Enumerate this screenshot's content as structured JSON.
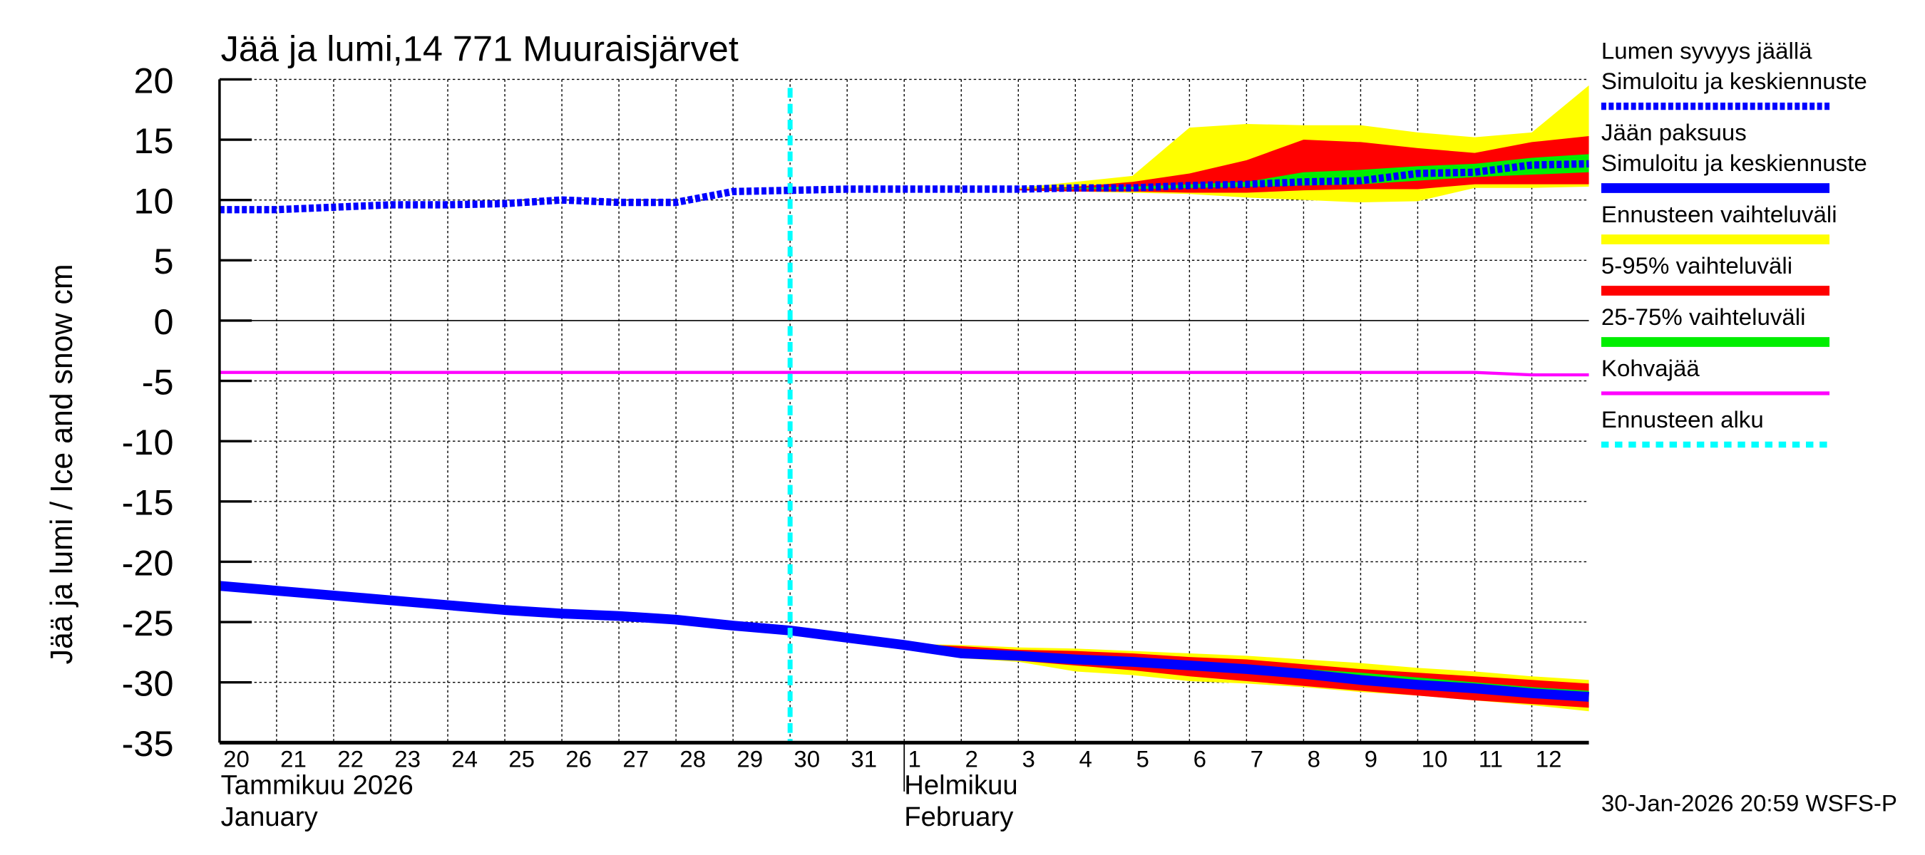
{
  "chart_data": {
    "type": "line",
    "title": "Jää ja lumi,14 771 Muuraisjärvet",
    "ylabel": "Jää ja lumi / Ice and snow    cm",
    "ylim": [
      -35,
      20
    ],
    "yticks": [
      20,
      15,
      10,
      5,
      0,
      -5,
      -10,
      -15,
      -20,
      -25,
      -30,
      -35
    ],
    "xlim": [
      "2026-01-20",
      "2026-02-13"
    ],
    "grid": true,
    "legend_placement": "right",
    "x_tick_labels": [
      "20",
      "21",
      "22",
      "23",
      "24",
      "25",
      "26",
      "27",
      "28",
      "29",
      "30",
      "31",
      "1",
      "2",
      "3",
      "4",
      "5",
      "6",
      "7",
      "8",
      "9",
      "10",
      "11",
      "12"
    ],
    "month_labels": [
      {
        "fi": "Tammikuu  2026",
        "en": "January",
        "start": "2026-01-20"
      },
      {
        "fi": "Helmikuu",
        "en": "February",
        "start": "2026-02-01"
      }
    ],
    "dates": [
      "2026-01-20",
      "2026-01-21",
      "2026-01-22",
      "2026-01-23",
      "2026-01-24",
      "2026-01-25",
      "2026-01-26",
      "2026-01-27",
      "2026-01-28",
      "2026-01-29",
      "2026-01-30",
      "2026-01-31",
      "2026-02-01",
      "2026-02-02",
      "2026-02-03",
      "2026-02-04",
      "2026-02-05",
      "2026-02-06",
      "2026-02-07",
      "2026-02-08",
      "2026-02-09",
      "2026-02-10",
      "2026-02-11",
      "2026-02-12",
      "2026-02-13"
    ],
    "forecast_start": "2026-01-30",
    "snow": {
      "name": "Lumen syvyys jäällä Simuloitu ja keskiennuste",
      "color": "#0000ff",
      "values": [
        9.2,
        9.2,
        9.4,
        9.6,
        9.6,
        9.7,
        10.0,
        9.8,
        9.8,
        10.7,
        10.8,
        10.9,
        10.9,
        10.9,
        10.9,
        11.0,
        11.0,
        11.2,
        11.3,
        11.5,
        11.6,
        12.2,
        12.3,
        12.9,
        13.0
      ],
      "band_start": "2026-02-03",
      "range_upper": [
        11.0,
        11.5,
        12.0,
        16.0,
        16.3,
        16.2,
        16.2,
        15.6,
        15.2,
        15.6,
        19.5
      ],
      "range_lower": [
        10.8,
        10.7,
        10.6,
        10.5,
        10.2,
        10.0,
        9.8,
        9.9,
        11.0,
        11.0,
        11.1
      ],
      "p5_95_upper": [
        10.9,
        11.1,
        11.5,
        12.2,
        13.3,
        15.0,
        14.8,
        14.3,
        13.9,
        14.8,
        15.3
      ],
      "p5_95_lower": [
        10.8,
        10.7,
        10.7,
        10.6,
        10.6,
        10.8,
        10.9,
        10.9,
        11.3,
        11.3,
        11.3
      ],
      "p25_75_upper": [
        10.9,
        11.0,
        11.1,
        11.3,
        11.5,
        12.3,
        12.5,
        12.8,
        13.0,
        13.5,
        13.8
      ],
      "p25_75_lower": [
        10.9,
        10.9,
        10.9,
        11.0,
        11.1,
        11.2,
        11.3,
        11.6,
        11.9,
        12.1,
        12.3
      ]
    },
    "ice": {
      "name": "Jään paksuus Simuloitu ja keskiennuste",
      "color": "#0000ff",
      "values": [
        -22.0,
        -22.4,
        -22.8,
        -23.2,
        -23.6,
        -24.0,
        -24.3,
        -24.5,
        -24.8,
        -25.3,
        -25.7,
        -26.3,
        -26.9,
        -27.6,
        -27.8,
        -28.1,
        -28.3,
        -28.6,
        -28.9,
        -29.3,
        -29.8,
        -30.2,
        -30.5,
        -30.9,
        -31.2
      ],
      "band_start": "2026-02-01",
      "range_upper": [
        -26.8,
        -26.9,
        -27.1,
        -27.2,
        -27.4,
        -27.6,
        -27.8,
        -28.1,
        -28.4,
        -28.8,
        -29.1,
        -29.5,
        -29.8
      ],
      "range_lower": [
        -27.0,
        -28.0,
        -28.3,
        -29.1,
        -29.4,
        -29.9,
        -30.1,
        -30.4,
        -30.8,
        -31.1,
        -31.5,
        -31.9,
        -32.4
      ],
      "p5_95_upper": [
        -26.8,
        -27.0,
        -27.3,
        -27.4,
        -27.6,
        -27.9,
        -28.1,
        -28.5,
        -28.9,
        -29.2,
        -29.5,
        -29.8,
        -30.1
      ],
      "p5_95_lower": [
        -26.9,
        -27.9,
        -28.2,
        -28.6,
        -29.0,
        -29.5,
        -29.9,
        -30.3,
        -30.7,
        -31.1,
        -31.5,
        -31.8,
        -32.1
      ],
      "p25_75_upper": [
        -26.8,
        -27.2,
        -27.5,
        -27.8,
        -28.0,
        -28.3,
        -28.6,
        -28.9,
        -29.2,
        -29.6,
        -30.0,
        -30.4,
        -30.7
      ],
      "p25_75_lower": [
        -26.9,
        -27.7,
        -27.9,
        -28.3,
        -28.6,
        -28.9,
        -29.2,
        -29.6,
        -30.0,
        -30.4,
        -30.8,
        -31.2,
        -31.6
      ]
    },
    "slush": {
      "name": "Kohvajää",
      "color": "#ff00ff",
      "values": [
        -4.3,
        -4.3,
        -4.3,
        -4.3,
        -4.3,
        -4.3,
        -4.3,
        -4.3,
        -4.3,
        -4.3,
        -4.3,
        -4.3,
        -4.3,
        -4.3,
        -4.3,
        -4.3,
        -4.3,
        -4.3,
        -4.3,
        -4.3,
        -4.3,
        -4.3,
        -4.3,
        -4.5,
        -4.5
      ]
    },
    "legend": [
      {
        "lines": [
          "Lumen syvyys jäällä",
          "Simuloitu ja keskiennuste"
        ],
        "color": "#0000ff",
        "style": "dotted"
      },
      {
        "lines": [
          "Jään paksuus",
          "Simuloitu ja keskiennuste"
        ],
        "color": "#0000ff",
        "style": "solid"
      },
      {
        "lines": [
          "Ennusteen vaihteluväli"
        ],
        "color": "#ffff00",
        "style": "solid"
      },
      {
        "lines": [
          "5-95% vaihteluväli"
        ],
        "color": "#ff0000",
        "style": "solid"
      },
      {
        "lines": [
          "25-75% vaihteluväli"
        ],
        "color": "#00ee00",
        "style": "solid"
      },
      {
        "lines": [
          "Kohvajää"
        ],
        "color": "#ff00ff",
        "style": "thin"
      },
      {
        "lines": [
          "Ennusteen alku"
        ],
        "color": "#00ffff",
        "style": "dashed"
      }
    ],
    "colors": {
      "range": "#ffff00",
      "p5_95": "#ff0000",
      "p25_75": "#00ee00",
      "forecast_start": "#00ffff"
    }
  },
  "footer": {
    "timestamp": "30-Jan-2026 20:59 WSFS-P"
  }
}
